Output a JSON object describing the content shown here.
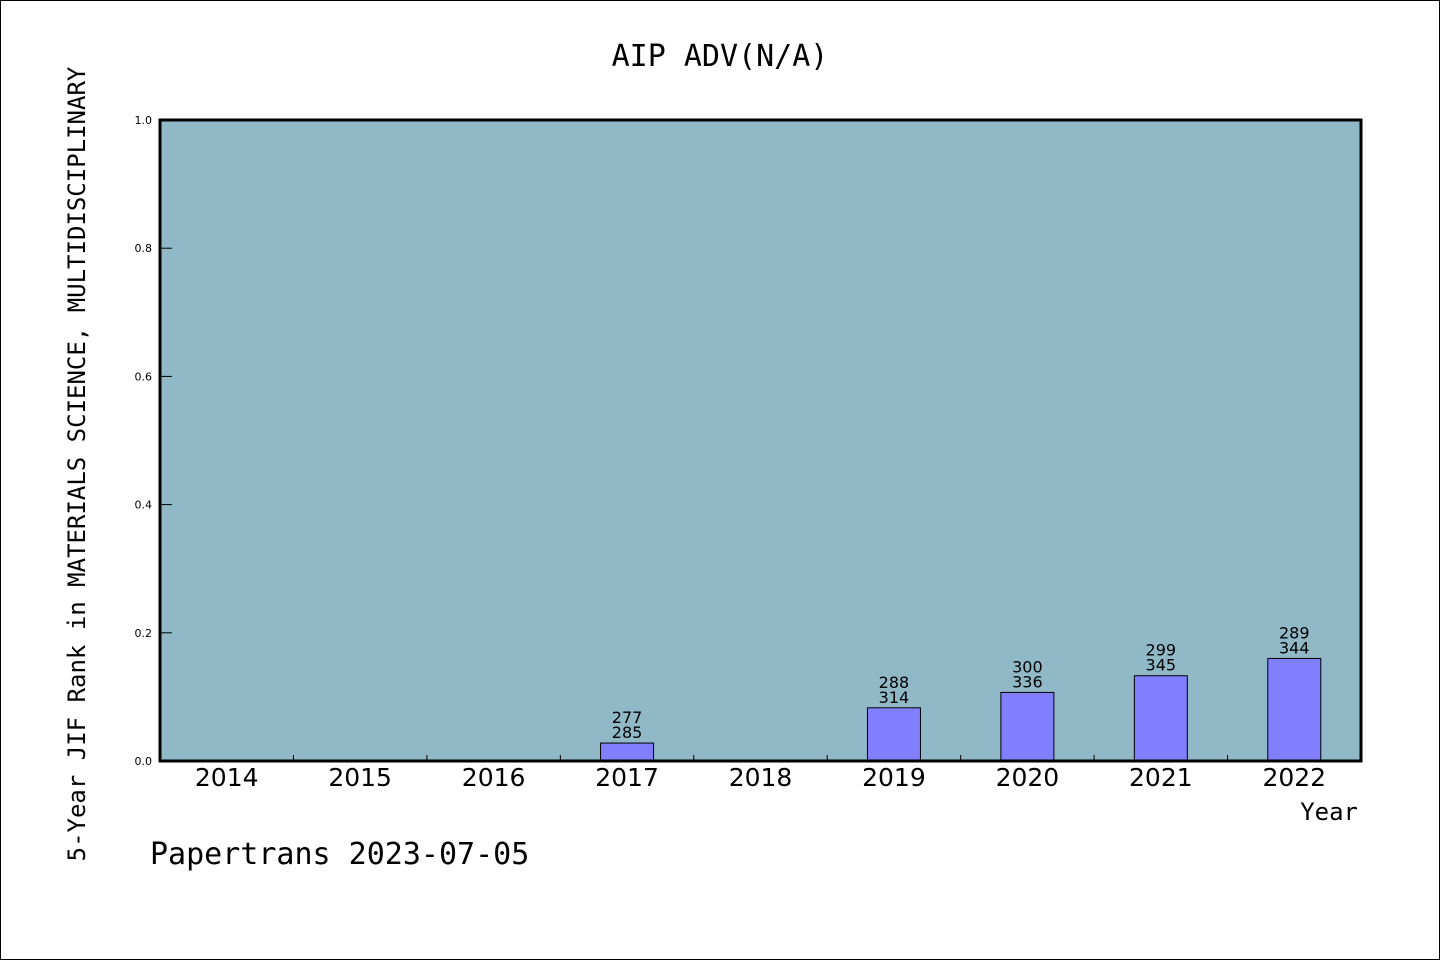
{
  "chart_data": {
    "type": "bar",
    "title": "AIP ADV(N/A)",
    "xlabel": "Year",
    "ylabel": "5-Year JIF Rank in MATERIALS SCIENCE, MULTIDISCIPLINARY",
    "ylim": [
      0,
      1.0
    ],
    "yticks": [
      "0.0",
      "0.2",
      "0.4",
      "0.6",
      "0.8",
      "1.0"
    ],
    "categories": [
      "2014",
      "2015",
      "2016",
      "2017",
      "2018",
      "2019",
      "2020",
      "2021",
      "2022"
    ],
    "values": [
      null,
      null,
      null,
      0.028,
      null,
      0.083,
      0.107,
      0.133,
      0.16
    ],
    "labels": [
      null,
      null,
      null,
      {
        "rank": "277",
        "total": "285"
      },
      null,
      {
        "rank": "288",
        "total": "314"
      },
      {
        "rank": "300",
        "total": "336"
      },
      {
        "rank": "299",
        "total": "345"
      },
      {
        "rank": "289",
        "total": "344"
      }
    ],
    "grid": false,
    "colors": {
      "plot_bg": "#90b8c6",
      "bar": "#8080ff",
      "bar_edge": "#000000"
    }
  },
  "footer": "Papertrans 2023-07-05"
}
